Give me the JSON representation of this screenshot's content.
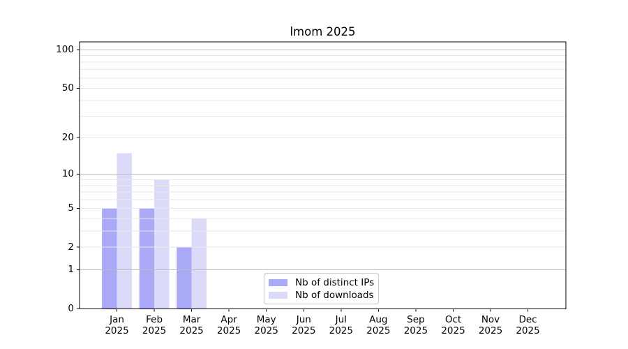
{
  "chart_data": {
    "type": "bar",
    "title": "lmom 2025",
    "categories": [
      "Jan",
      "Feb",
      "Mar",
      "Apr",
      "May",
      "Jun",
      "Jul",
      "Aug",
      "Sep",
      "Oct",
      "Nov",
      "Dec"
    ],
    "category_year": "2025",
    "series": [
      {
        "name": "Nb of distinct IPs",
        "color": "#a9a9f7",
        "values": [
          5,
          5,
          2,
          0,
          0,
          0,
          0,
          0,
          0,
          0,
          0,
          0
        ]
      },
      {
        "name": "Nb of downloads",
        "color": "#dbdbf9",
        "values": [
          15,
          9,
          4,
          0,
          0,
          0,
          0,
          0,
          0,
          0,
          0,
          0
        ]
      }
    ],
    "yscale": "log1p",
    "ylim": [
      0,
      100
    ],
    "yticks": [
      0,
      1,
      2,
      5,
      10,
      20,
      50,
      100
    ],
    "grid": {
      "major": [
        1,
        10,
        100
      ],
      "minor": [
        2,
        3,
        4,
        5,
        6,
        7,
        8,
        9,
        20,
        30,
        40,
        50,
        60,
        70,
        80,
        90
      ],
      "major_color": "#bcbcbc",
      "minor_color": "#e7e7e7",
      "on": true
    },
    "legend_position": "lower-center",
    "axis_color": "#000000",
    "text_color": "#000000",
    "background_color": "#ffffff"
  }
}
